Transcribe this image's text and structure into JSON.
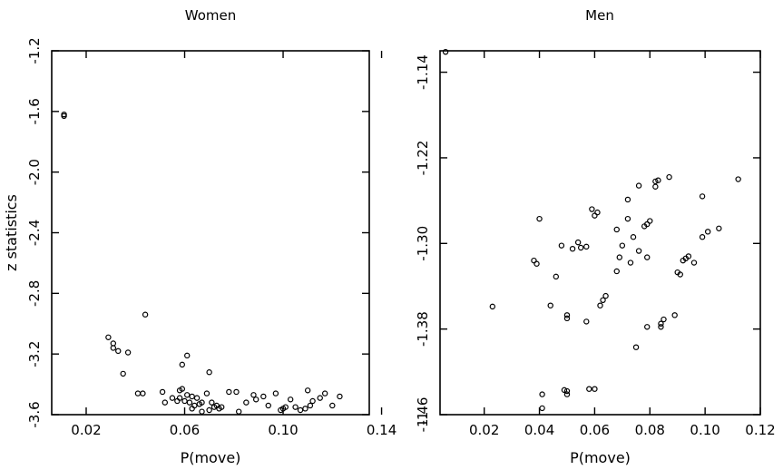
{
  "chart_data": [
    {
      "type": "scatter",
      "title": "Women",
      "xlabel": "P(move)",
      "ylabel": "z statistics",
      "xlim": [
        0.006,
        0.135
      ],
      "ylim": [
        -3.6,
        -1.2
      ],
      "xticks": [
        0.02,
        0.06,
        0.1,
        0.14
      ],
      "xtick_labels": [
        "0.02",
        "0.06",
        "0.10",
        "0.14"
      ],
      "yticks": [
        -1.2,
        -1.6,
        -2.0,
        -2.4,
        -2.8,
        -3.2,
        -3.6
      ],
      "ytick_labels": [
        "-1.2",
        "-1.6",
        "-2.0",
        "-2.4",
        "-2.8",
        "-3.2",
        "-3.6"
      ],
      "marker": "open-circle",
      "grid": false,
      "points": [
        [
          0.011,
          -1.62
        ],
        [
          0.011,
          -1.63
        ],
        [
          0.044,
          -2.94
        ],
        [
          0.029,
          -3.09
        ],
        [
          0.031,
          -3.13
        ],
        [
          0.031,
          -3.16
        ],
        [
          0.033,
          -3.18
        ],
        [
          0.037,
          -3.19
        ],
        [
          0.035,
          -3.33
        ],
        [
          0.061,
          -3.21
        ],
        [
          0.059,
          -3.27
        ],
        [
          0.07,
          -3.32
        ],
        [
          0.041,
          -3.46
        ],
        [
          0.043,
          -3.46
        ],
        [
          0.051,
          -3.45
        ],
        [
          0.058,
          -3.44
        ],
        [
          0.059,
          -3.43
        ],
        [
          0.061,
          -3.47
        ],
        [
          0.063,
          -3.48
        ],
        [
          0.065,
          -3.49
        ],
        [
          0.058,
          -3.49
        ],
        [
          0.055,
          -3.49
        ],
        [
          0.067,
          -3.52
        ],
        [
          0.069,
          -3.46
        ],
        [
          0.066,
          -3.53
        ],
        [
          0.062,
          -3.52
        ],
        [
          0.06,
          -3.51
        ],
        [
          0.064,
          -3.54
        ],
        [
          0.071,
          -3.52
        ],
        [
          0.073,
          -3.54
        ],
        [
          0.075,
          -3.55
        ],
        [
          0.072,
          -3.55
        ],
        [
          0.052,
          -3.52
        ],
        [
          0.057,
          -3.51
        ],
        [
          0.063,
          -3.56
        ],
        [
          0.07,
          -3.57
        ],
        [
          0.074,
          -3.56
        ],
        [
          0.078,
          -3.45
        ],
        [
          0.081,
          -3.45
        ],
        [
          0.082,
          -3.58
        ],
        [
          0.085,
          -3.52
        ],
        [
          0.088,
          -3.47
        ],
        [
          0.089,
          -3.5
        ],
        [
          0.092,
          -3.48
        ],
        [
          0.094,
          -3.54
        ],
        [
          0.097,
          -3.46
        ],
        [
          0.099,
          -3.57
        ],
        [
          0.101,
          -3.55
        ],
        [
          0.103,
          -3.5
        ],
        [
          0.105,
          -3.55
        ],
        [
          0.107,
          -3.57
        ],
        [
          0.11,
          -3.44
        ],
        [
          0.111,
          -3.54
        ],
        [
          0.112,
          -3.51
        ],
        [
          0.115,
          -3.49
        ],
        [
          0.117,
          -3.46
        ],
        [
          0.12,
          -3.54
        ],
        [
          0.123,
          -3.48
        ],
        [
          0.1,
          -3.56
        ],
        [
          0.109,
          -3.56
        ],
        [
          0.067,
          -3.58
        ]
      ]
    },
    {
      "type": "scatter",
      "title": "Men",
      "xlabel": "P(move)",
      "ylabel": "",
      "xlim": [
        0.004,
        0.12
      ],
      "ylim": [
        -1.46,
        -1.12
      ],
      "xticks": [
        0.02,
        0.04,
        0.06,
        0.08,
        0.1,
        0.12
      ],
      "xtick_labels": [
        "0.02",
        "0.04",
        "0.06",
        "0.08",
        "0.10",
        "0.12"
      ],
      "yticks": [
        -1.14,
        -1.22,
        -1.3,
        -1.38,
        -1.46
      ],
      "ytick_labels": [
        "-1.14",
        "-1.22",
        "-1.30",
        "-1.38",
        "-1.46"
      ],
      "extra_ytick_labels": [
        "-1"
      ],
      "marker": "open-circle",
      "grid": false,
      "points": [
        [
          0.006,
          -1.121
        ],
        [
          0.023,
          -1.359
        ],
        [
          0.038,
          -1.316
        ],
        [
          0.039,
          -1.319
        ],
        [
          0.04,
          -1.277
        ],
        [
          0.041,
          -1.441
        ],
        [
          0.041,
          -1.454
        ],
        [
          0.044,
          -1.358
        ],
        [
          0.046,
          -1.331
        ],
        [
          0.048,
          -1.302
        ],
        [
          0.05,
          -1.367
        ],
        [
          0.05,
          -1.37
        ],
        [
          0.049,
          -1.437
        ],
        [
          0.05,
          -1.441
        ],
        [
          0.05,
          -1.438
        ],
        [
          0.052,
          -1.305
        ],
        [
          0.054,
          -1.299
        ],
        [
          0.055,
          -1.304
        ],
        [
          0.057,
          -1.303
        ],
        [
          0.057,
          -1.373
        ],
        [
          0.058,
          -1.436
        ],
        [
          0.059,
          -1.268
        ],
        [
          0.06,
          -1.274
        ],
        [
          0.061,
          -1.271
        ],
        [
          0.06,
          -1.436
        ],
        [
          0.062,
          -1.358
        ],
        [
          0.063,
          -1.353
        ],
        [
          0.064,
          -1.349
        ],
        [
          0.068,
          -1.287
        ],
        [
          0.068,
          -1.326
        ],
        [
          0.069,
          -1.313
        ],
        [
          0.07,
          -1.302
        ],
        [
          0.072,
          -1.259
        ],
        [
          0.072,
          -1.277
        ],
        [
          0.073,
          -1.318
        ],
        [
          0.074,
          -1.294
        ],
        [
          0.075,
          -1.397
        ],
        [
          0.076,
          -1.307
        ],
        [
          0.076,
          -1.246
        ],
        [
          0.078,
          -1.284
        ],
        [
          0.079,
          -1.282
        ],
        [
          0.079,
          -1.313
        ],
        [
          0.079,
          -1.378
        ],
        [
          0.08,
          -1.279
        ],
        [
          0.082,
          -1.242
        ],
        [
          0.082,
          -1.247
        ],
        [
          0.083,
          -1.241
        ],
        [
          0.084,
          -1.378
        ],
        [
          0.084,
          -1.375
        ],
        [
          0.085,
          -1.371
        ],
        [
          0.087,
          -1.238
        ],
        [
          0.089,
          -1.367
        ],
        [
          0.09,
          -1.327
        ],
        [
          0.091,
          -1.329
        ],
        [
          0.092,
          -1.316
        ],
        [
          0.093,
          -1.314
        ],
        [
          0.094,
          -1.312
        ],
        [
          0.096,
          -1.318
        ],
        [
          0.099,
          -1.256
        ],
        [
          0.099,
          -1.294
        ],
        [
          0.101,
          -1.289
        ],
        [
          0.105,
          -1.286
        ],
        [
          0.112,
          -1.24
        ]
      ]
    }
  ]
}
